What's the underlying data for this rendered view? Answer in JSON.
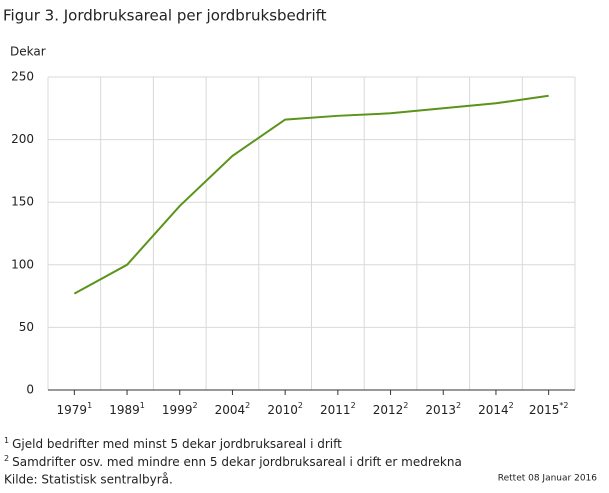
{
  "chart_data": {
    "type": "line",
    "title": "Figur 3. Jordbruksareal per jordbruksbedrift",
    "y_label": "Dekar",
    "categories": [
      "1979",
      "1989",
      "1999",
      "2004",
      "2010",
      "2011",
      "2012",
      "2013",
      "2014",
      "2015"
    ],
    "category_notes": [
      "1",
      "1",
      "2",
      "2",
      "2",
      "2",
      "2",
      "2",
      "2",
      "*2"
    ],
    "series": [
      {
        "name": "Jordbruksareal per jordbruksbedrift",
        "color": "#5a9419",
        "values": [
          77,
          100,
          147,
          187,
          216,
          219,
          221,
          225,
          229,
          235
        ]
      }
    ],
    "ylim": [
      0,
      250
    ],
    "yticks": [
      0,
      50,
      100,
      150,
      200,
      250
    ],
    "grid": true,
    "footnotes": [
      {
        "mark": "1",
        "text": "Gjeld bedrifter med minst 5 dekar jordbruksareal i drift"
      },
      {
        "mark": "2",
        "text": "Samdrifter osv. med mindre enn 5 dekar jordbruksareal i drift er medrekna"
      }
    ],
    "source": "Kilde: Statistisk sentralbyrå.",
    "corrected": "Rettet 08 Januar 2016"
  }
}
